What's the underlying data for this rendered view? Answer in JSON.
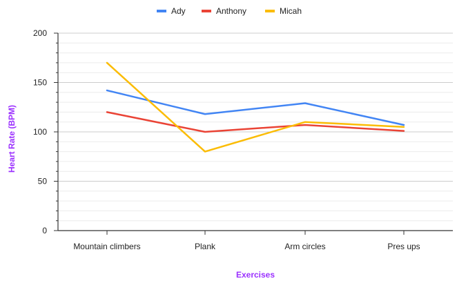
{
  "chart_data": {
    "type": "line",
    "title": "",
    "xlabel": "Exercises",
    "ylabel": "Heart Rate (BPM)",
    "categories": [
      "Mountain climbers",
      "Plank",
      "Arm circles",
      "Pres ups"
    ],
    "ylim": [
      0,
      200
    ],
    "yticks": [
      0,
      50,
      100,
      150,
      200
    ],
    "ytick_labels": [
      "0",
      "50",
      "100",
      "150",
      "200"
    ],
    "grid": true,
    "legend_position": "top",
    "series": [
      {
        "name": "Ady",
        "color": "#4285f4",
        "values": [
          142,
          118,
          129,
          107
        ]
      },
      {
        "name": "Anthony",
        "color": "#ea4335",
        "values": [
          120,
          100,
          107,
          101
        ]
      },
      {
        "name": "Micah",
        "color": "#fbbc04",
        "values": [
          170,
          80,
          110,
          105
        ]
      }
    ],
    "axis_title_color": "#9b30ff"
  }
}
